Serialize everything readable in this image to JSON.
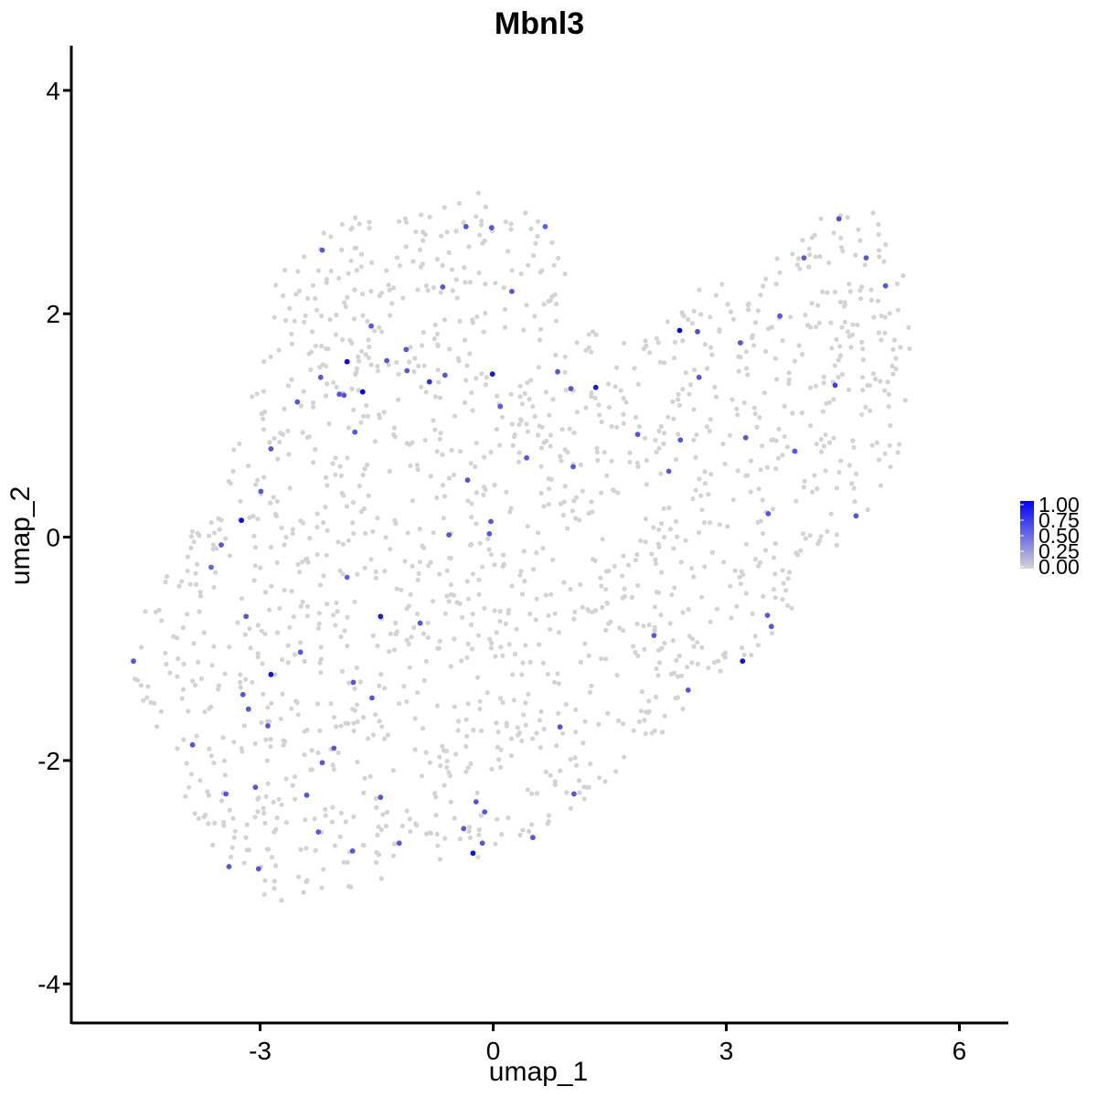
{
  "chart_data": {
    "type": "scatter",
    "title": "Mbnl3",
    "xlabel": "umap_1",
    "ylabel": "umap_2",
    "xlim": [
      -5.43,
      6.63
    ],
    "ylim": [
      -4.35,
      4.4
    ],
    "xticks": [
      -3,
      0,
      3,
      6
    ],
    "xtick_labels": [
      "-3",
      "0",
      "3",
      "6"
    ],
    "yticks": [
      -4,
      -2,
      0,
      2,
      4
    ],
    "ytick_labels": [
      "-4",
      "-2",
      "0",
      "2",
      "4"
    ],
    "grid": false,
    "legend": {
      "placement": "right",
      "breaks": [
        1.0,
        0.75,
        0.5,
        0.25,
        0.0
      ],
      "labels": [
        "1.00",
        "0.75",
        "0.50",
        "0.25",
        "0.00"
      ],
      "low_color": "#d3d3d3",
      "high_color": "#0000ff"
    },
    "background_cell_color": "#d3d3d3",
    "background_cell_count": 1600,
    "background_outline": [
      [
        -4.7,
        -1.2
      ],
      [
        -4.3,
        -1.75
      ],
      [
        -3.9,
        -2.5
      ],
      [
        -3.3,
        -3.05
      ],
      [
        -2.6,
        -3.35
      ],
      [
        -1.8,
        -3.15
      ],
      [
        -1.0,
        -3.0
      ],
      [
        0.0,
        -2.85
      ],
      [
        0.9,
        -2.5
      ],
      [
        1.8,
        -2.05
      ],
      [
        2.5,
        -1.5
      ],
      [
        3.2,
        -1.15
      ],
      [
        3.7,
        -0.8
      ],
      [
        4.3,
        -0.2
      ],
      [
        4.9,
        0.3
      ],
      [
        5.35,
        0.9
      ],
      [
        5.4,
        1.7
      ],
      [
        5.3,
        2.4
      ],
      [
        4.9,
        2.9
      ],
      [
        4.4,
        3.05
      ],
      [
        4.0,
        2.7
      ],
      [
        3.3,
        2.4
      ],
      [
        2.7,
        2.25
      ],
      [
        2.1,
        1.95
      ],
      [
        1.5,
        1.65
      ],
      [
        1.0,
        2.25
      ],
      [
        0.6,
        2.9
      ],
      [
        0.0,
        3.1
      ],
      [
        -0.8,
        3.05
      ],
      [
        -1.6,
        2.9
      ],
      [
        -2.3,
        2.8
      ],
      [
        -2.8,
        2.3
      ],
      [
        -3.0,
        1.6
      ],
      [
        -3.2,
        1.0
      ],
      [
        -3.6,
        0.4
      ],
      [
        -4.1,
        -0.2
      ],
      [
        -4.55,
        -0.75
      ]
    ],
    "expressing_cells": [
      {
        "x": 4.45,
        "y": 2.85,
        "value": 0.65
      },
      {
        "x": 4.0,
        "y": 2.5,
        "value": 0.6
      },
      {
        "x": 4.8,
        "y": 2.5,
        "value": 0.6
      },
      {
        "x": 5.05,
        "y": 2.25,
        "value": 0.6
      },
      {
        "x": -2.2,
        "y": 2.57,
        "value": 0.6
      },
      {
        "x": -0.35,
        "y": 2.78,
        "value": 0.6
      },
      {
        "x": -0.02,
        "y": 2.77,
        "value": 0.6
      },
      {
        "x": 0.67,
        "y": 2.78,
        "value": 0.55
      },
      {
        "x": -0.65,
        "y": 2.24,
        "value": 0.6
      },
      {
        "x": 0.24,
        "y": 2.2,
        "value": 0.6
      },
      {
        "x": 2.4,
        "y": 1.85,
        "value": 1.0
      },
      {
        "x": 2.63,
        "y": 1.84,
        "value": 0.65
      },
      {
        "x": 3.69,
        "y": 1.98,
        "value": 0.6
      },
      {
        "x": 3.18,
        "y": 1.74,
        "value": 0.6
      },
      {
        "x": -1.57,
        "y": 1.89,
        "value": 0.6
      },
      {
        "x": -1.88,
        "y": 1.57,
        "value": 1.0
      },
      {
        "x": -1.68,
        "y": 1.3,
        "value": 1.0
      },
      {
        "x": -1.37,
        "y": 1.58,
        "value": 0.6
      },
      {
        "x": -1.12,
        "y": 1.68,
        "value": 0.6
      },
      {
        "x": -1.11,
        "y": 1.49,
        "value": 0.6
      },
      {
        "x": -0.82,
        "y": 1.39,
        "value": 0.8
      },
      {
        "x": -0.62,
        "y": 1.45,
        "value": 0.6
      },
      {
        "x": -0.01,
        "y": 1.46,
        "value": 0.9
      },
      {
        "x": 0.83,
        "y": 1.48,
        "value": 0.6
      },
      {
        "x": 1.0,
        "y": 1.33,
        "value": 0.6
      },
      {
        "x": 1.32,
        "y": 1.34,
        "value": 0.9
      },
      {
        "x": 2.65,
        "y": 1.43,
        "value": 0.6
      },
      {
        "x": 4.4,
        "y": 1.36,
        "value": 0.7
      },
      {
        "x": -2.22,
        "y": 1.43,
        "value": 0.6
      },
      {
        "x": -1.98,
        "y": 1.28,
        "value": 0.6
      },
      {
        "x": -1.92,
        "y": 1.27,
        "value": 0.6
      },
      {
        "x": 0.09,
        "y": 1.17,
        "value": 0.6
      },
      {
        "x": -2.52,
        "y": 1.21,
        "value": 0.6
      },
      {
        "x": -1.78,
        "y": 0.94,
        "value": 0.6
      },
      {
        "x": 1.86,
        "y": 0.92,
        "value": 0.6
      },
      {
        "x": 2.41,
        "y": 0.87,
        "value": 0.6
      },
      {
        "x": 3.25,
        "y": 0.89,
        "value": 0.6
      },
      {
        "x": -2.86,
        "y": 0.79,
        "value": 0.6
      },
      {
        "x": 0.43,
        "y": 0.71,
        "value": 0.6
      },
      {
        "x": 1.03,
        "y": 0.63,
        "value": 0.6
      },
      {
        "x": 2.26,
        "y": 0.59,
        "value": 0.6
      },
      {
        "x": 3.88,
        "y": 0.77,
        "value": 0.6
      },
      {
        "x": -0.33,
        "y": 0.51,
        "value": 0.6
      },
      {
        "x": -2.99,
        "y": 0.41,
        "value": 0.6
      },
      {
        "x": 3.54,
        "y": 0.21,
        "value": 0.6
      },
      {
        "x": 4.67,
        "y": 0.19,
        "value": 0.6
      },
      {
        "x": -3.24,
        "y": 0.15,
        "value": 0.95
      },
      {
        "x": -0.03,
        "y": 0.14,
        "value": 0.6
      },
      {
        "x": -0.57,
        "y": 0.02,
        "value": 0.6
      },
      {
        "x": -0.05,
        "y": 0.03,
        "value": 0.6
      },
      {
        "x": -3.5,
        "y": -0.07,
        "value": 0.6
      },
      {
        "x": -3.63,
        "y": -0.27,
        "value": 0.55
      },
      {
        "x": -1.88,
        "y": -0.36,
        "value": 0.55
      },
      {
        "x": -3.18,
        "y": -0.71,
        "value": 0.6
      },
      {
        "x": -1.45,
        "y": -0.71,
        "value": 0.9
      },
      {
        "x": 3.53,
        "y": -0.7,
        "value": 0.6
      },
      {
        "x": -0.94,
        "y": -0.77,
        "value": 0.6
      },
      {
        "x": 3.58,
        "y": -0.8,
        "value": 0.6
      },
      {
        "x": 2.07,
        "y": -0.88,
        "value": 0.6
      },
      {
        "x": -4.63,
        "y": -1.11,
        "value": 0.6
      },
      {
        "x": -2.48,
        "y": -1.03,
        "value": 0.6
      },
      {
        "x": 3.21,
        "y": -1.11,
        "value": 0.95
      },
      {
        "x": -2.86,
        "y": -1.23,
        "value": 0.95
      },
      {
        "x": -1.8,
        "y": -1.3,
        "value": 0.6
      },
      {
        "x": 2.51,
        "y": -1.37,
        "value": 0.6
      },
      {
        "x": -3.22,
        "y": -1.41,
        "value": 0.6
      },
      {
        "x": -1.56,
        "y": -1.44,
        "value": 0.6
      },
      {
        "x": -3.15,
        "y": -1.54,
        "value": 0.6
      },
      {
        "x": -2.9,
        "y": -1.69,
        "value": 0.6
      },
      {
        "x": 0.86,
        "y": -1.7,
        "value": 0.6
      },
      {
        "x": -3.87,
        "y": -1.86,
        "value": 0.6
      },
      {
        "x": -2.05,
        "y": -1.89,
        "value": 0.6
      },
      {
        "x": -2.2,
        "y": -2.02,
        "value": 0.6
      },
      {
        "x": -3.06,
        "y": -2.24,
        "value": 0.6
      },
      {
        "x": -3.44,
        "y": -2.3,
        "value": 0.6
      },
      {
        "x": -2.4,
        "y": -2.31,
        "value": 0.6
      },
      {
        "x": -1.45,
        "y": -2.33,
        "value": 0.6
      },
      {
        "x": 1.04,
        "y": -2.3,
        "value": 0.6
      },
      {
        "x": -0.22,
        "y": -2.37,
        "value": 0.6
      },
      {
        "x": -0.11,
        "y": -2.46,
        "value": 0.6
      },
      {
        "x": -0.38,
        "y": -2.61,
        "value": 0.6
      },
      {
        "x": -2.25,
        "y": -2.64,
        "value": 0.6
      },
      {
        "x": 0.51,
        "y": -2.69,
        "value": 0.6
      },
      {
        "x": -1.21,
        "y": -2.74,
        "value": 0.6
      },
      {
        "x": -0.14,
        "y": -2.74,
        "value": 0.6
      },
      {
        "x": -1.81,
        "y": -2.81,
        "value": 0.6
      },
      {
        "x": -0.26,
        "y": -2.83,
        "value": 0.95
      },
      {
        "x": -3.4,
        "y": -2.95,
        "value": 0.6
      },
      {
        "x": -3.02,
        "y": -2.97,
        "value": 0.6
      }
    ]
  }
}
